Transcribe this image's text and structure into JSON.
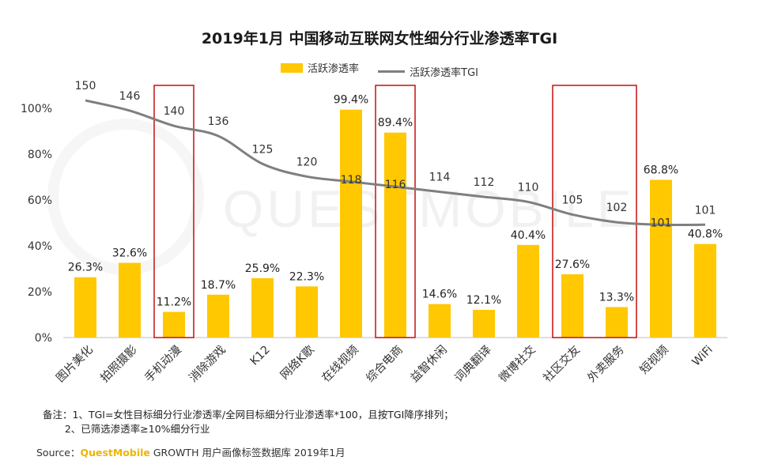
{
  "chart_data": {
    "type": "bar",
    "title": "2019年1月 中国移动互联网女性细分行业渗透率TGI",
    "categories": [
      "图片美化",
      "拍照摄影",
      "手机动漫",
      "消除游戏",
      "K12",
      "网络K歌",
      "在线视频",
      "综合电商",
      "益智休闲",
      "词典翻译",
      "微博社交",
      "社区交友",
      "外卖服务",
      "短视频",
      "WiFi"
    ],
    "series": [
      {
        "name": "活跃渗透率",
        "type": "bar",
        "axis": "left",
        "values": [
          26.3,
          32.6,
          11.2,
          18.7,
          25.9,
          22.3,
          99.4,
          89.4,
          14.6,
          12.1,
          40.4,
          27.6,
          13.3,
          68.8,
          40.8
        ],
        "labels": [
          "26.3%",
          "32.6%",
          "11.2%",
          "18.7%",
          "25.9%",
          "22.3%",
          "99.4%",
          "89.4%",
          "14.6%",
          "12.1%",
          "40.4%",
          "27.6%",
          "13.3%",
          "68.8%",
          "40.8%"
        ]
      },
      {
        "name": "活跃渗透率TGI",
        "type": "line",
        "axis": "hidden",
        "values": [
          150,
          146,
          140,
          136,
          125,
          120,
          118,
          116,
          114,
          112,
          110,
          105,
          102,
          101,
          101
        ],
        "labels": [
          "150",
          "146",
          "140",
          "136",
          "125",
          "120",
          "118",
          "116",
          "114",
          "112",
          "110",
          "105",
          "102",
          "101",
          "101"
        ]
      }
    ],
    "ylim": [
      0,
      100
    ],
    "y_ticks": [
      "0%",
      "20%",
      "40%",
      "60%",
      "80%",
      "100%"
    ],
    "highlight_boxes": [
      [
        "手机动漫"
      ],
      [
        "综合电商"
      ],
      [
        "社区交友",
        "外卖服务"
      ]
    ],
    "bar_color": "#FFC800",
    "line_color": "#7F7F7F",
    "highlight_color": "#C00000",
    "legend": "top",
    "grid": false
  },
  "notes": {
    "line1": "备注：1、TGI=女性目标细分行业渗透率/全网目标细分行业渗透率*100，且按TGI降序排列；",
    "line2": "       2、已筛选渗透率≥10%细分行业"
  },
  "source": {
    "prefix": "Source：",
    "brand": "QuestMobile",
    "suffix": " GROWTH 用户画像标签数据库 2019年1月"
  },
  "watermark": "QUESTMOBILE"
}
